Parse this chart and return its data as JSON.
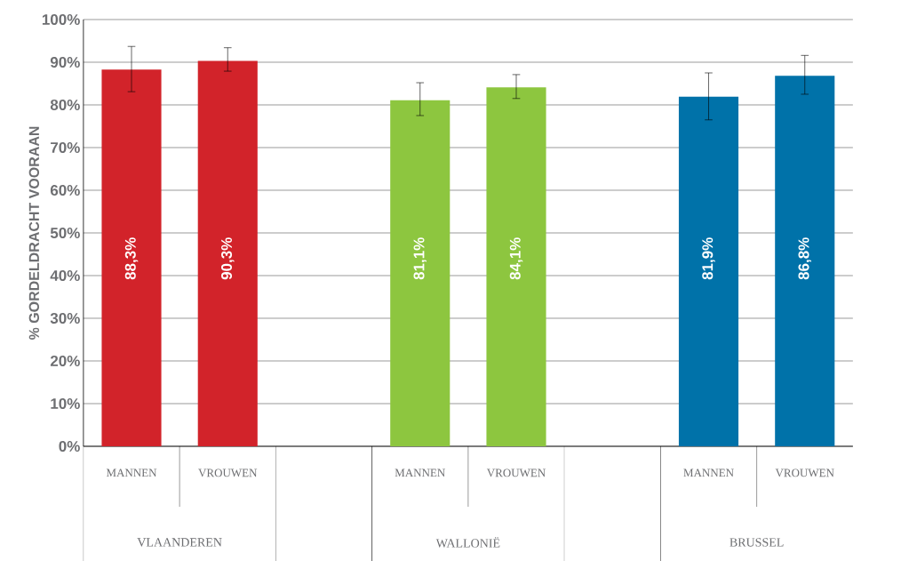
{
  "chart_data": {
    "type": "bar",
    "ylabel": "% GORDELDRACHT VOORAAN",
    "categories": [
      "MANNEN",
      "VROUWEN",
      null,
      "MANNEN",
      "VROUWEN",
      null,
      "MANNEN",
      "VROUWEN"
    ],
    "values": [
      88.3,
      90.3,
      null,
      81.1,
      84.1,
      null,
      81.9,
      86.8
    ],
    "colors": [
      "#d2232a",
      "#d2232a",
      "#ffffff",
      "#8dc63f",
      "#8dc63f",
      "#ffffff",
      "#0072a9",
      "#0072a9"
    ],
    "errors": [
      [
        83.1,
        93.7
      ],
      [
        87.9,
        93.4
      ],
      null,
      [
        77.5,
        85.2
      ],
      [
        81.5,
        87.1
      ],
      null,
      [
        76.5,
        87.5
      ],
      [
        82.5,
        91.6
      ]
    ],
    "value_labels": [
      "88,3%",
      "90,3%",
      null,
      "81,1%",
      "84,1%",
      null,
      "81,9%",
      "86,8%"
    ],
    "annotations": [
      "VLAANDEREN",
      "WALLONIË",
      "BRUSSEL"
    ],
    "ylim": [
      0,
      100
    ],
    "yticks": [
      {
        "value": 0,
        "label": "0%"
      },
      {
        "value": 10,
        "label": "10%"
      },
      {
        "value": 20,
        "label": "20%"
      },
      {
        "value": 30,
        "label": "30%"
      },
      {
        "value": 40,
        "label": "40%"
      },
      {
        "value": 50,
        "label": "50%"
      },
      {
        "value": 60,
        "label": "60%"
      },
      {
        "value": 70,
        "label": "70%"
      },
      {
        "value": 80,
        "label": "80%"
      },
      {
        "value": 90,
        "label": "90%"
      },
      {
        "value": 100,
        "label": "100%"
      }
    ],
    "grid": "y"
  }
}
